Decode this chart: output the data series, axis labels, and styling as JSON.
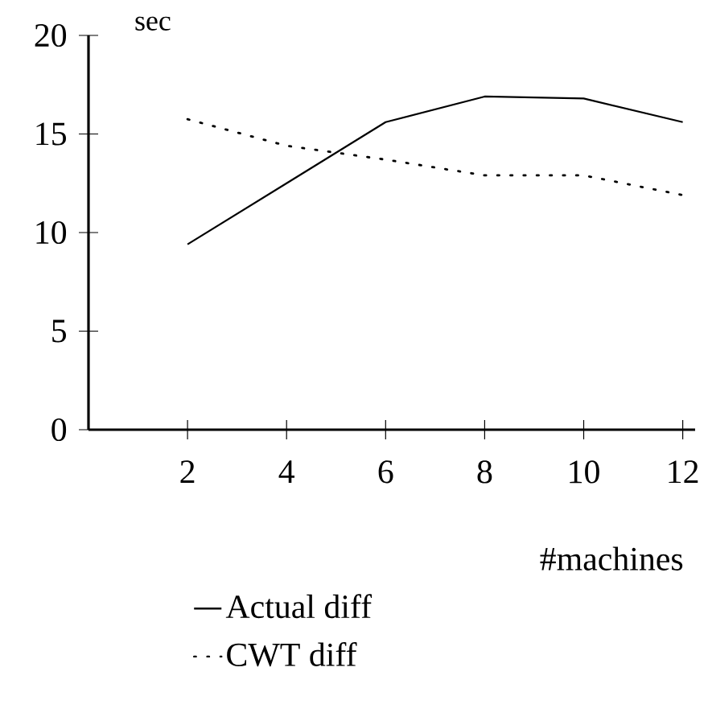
{
  "chart_data": {
    "type": "line",
    "xlabel": "#machines",
    "ylabel": "sec",
    "x": [
      2,
      4,
      6,
      8,
      10,
      12
    ],
    "series": [
      {
        "name": "Actual diff",
        "color": "#000000",
        "line_style": "solid",
        "values": [
          9.4,
          12.5,
          15.6,
          16.9,
          16.8,
          15.6
        ]
      },
      {
        "name": "CWT diff",
        "color": "#000000",
        "line_style": "dotted",
        "values": [
          15.75,
          14.4,
          13.7,
          12.9,
          12.9,
          11.9
        ]
      }
    ],
    "xlim": [
      0,
      12.25
    ],
    "ylim": [
      0,
      20
    ],
    "xticks": [
      2,
      4,
      6,
      8,
      10,
      12
    ],
    "yticks": [
      0,
      5,
      10,
      15,
      20
    ],
    "grid": false,
    "legend": "bottom",
    "marker": "none"
  }
}
